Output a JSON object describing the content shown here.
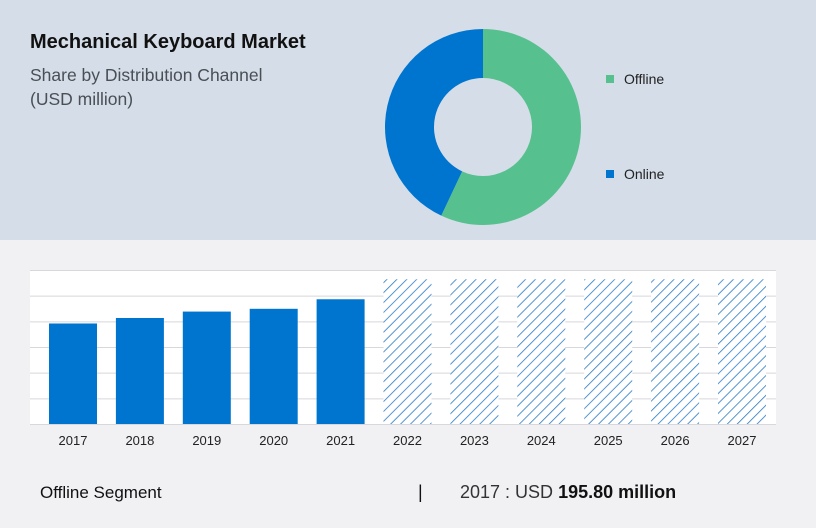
{
  "header": {
    "title": "Mechanical Keyboard Market",
    "subtitle_line1": "Share by Distribution Channel",
    "subtitle_line2": "(USD million)"
  },
  "colors": {
    "offline": "#56c18e",
    "online": "#0075cf",
    "bar": "#0075cf",
    "hatch": "#2a7bc6"
  },
  "legend": [
    {
      "label": "Offline",
      "color": "#56c18e"
    },
    {
      "label": "Online",
      "color": "#0075cf"
    }
  ],
  "footer": {
    "segment": "Offline Segment",
    "separator": "|",
    "value_prefix": "2017 : USD",
    "value_bold": "195.80 million"
  },
  "chart_data": [
    {
      "type": "pie",
      "variant": "donut",
      "slices": [
        {
          "name": "Offline",
          "share": 0.57
        },
        {
          "name": "Online",
          "share": 0.43
        }
      ],
      "legend_placement": "right"
    },
    {
      "type": "bar",
      "categories": [
        "2017",
        "2018",
        "2019",
        "2020",
        "2021",
        "2022",
        "2023",
        "2024",
        "2025",
        "2026",
        "2027"
      ],
      "values": [
        195.8,
        206.5,
        219.0,
        224.4,
        243.0,
        null,
        null,
        null,
        null,
        null,
        null
      ],
      "forecast": [
        false,
        false,
        false,
        false,
        false,
        true,
        true,
        true,
        true,
        true,
        true
      ],
      "forecast_level": 282,
      "ylim": [
        0,
        300
      ],
      "ylabel": "",
      "grid": true
    }
  ]
}
